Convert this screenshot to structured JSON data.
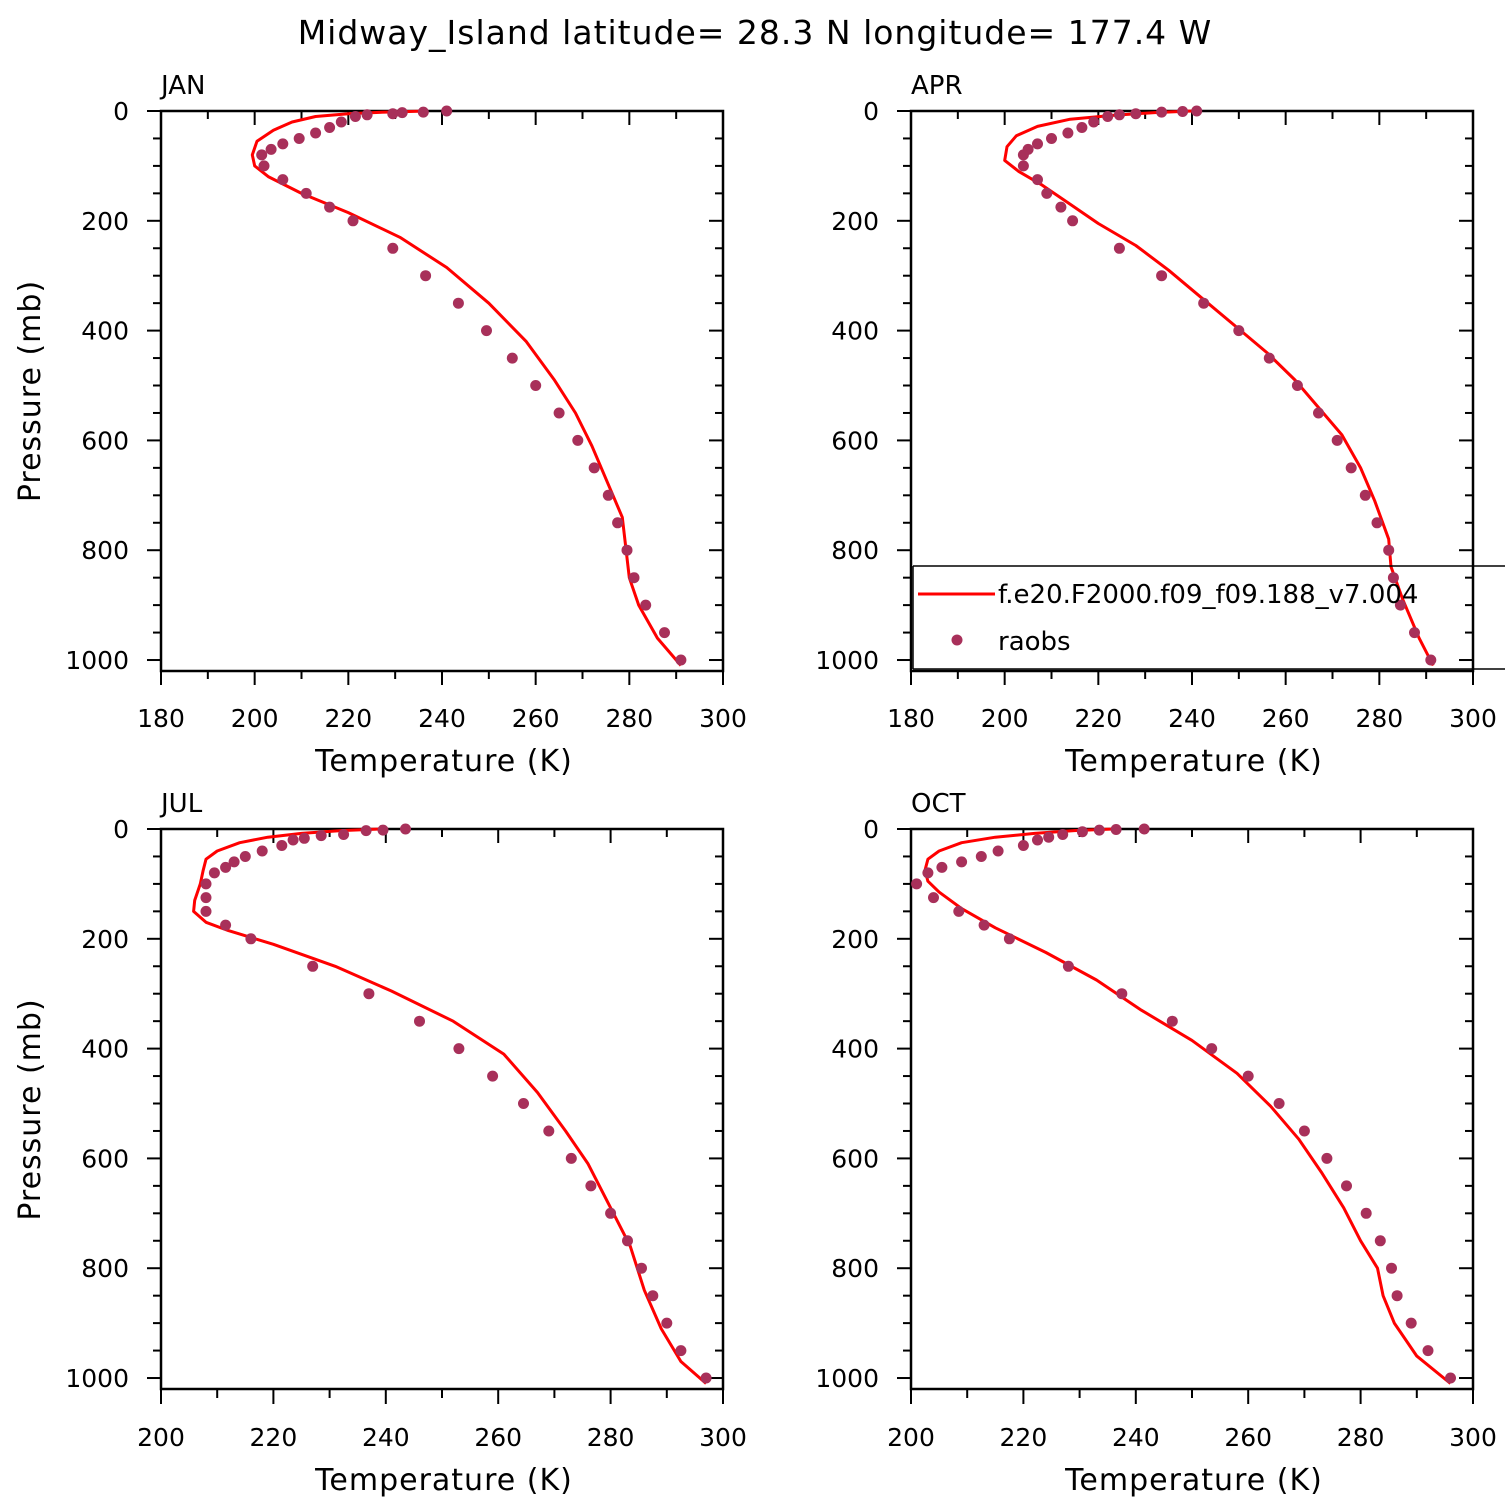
{
  "title": "Midway_Island  latitude= 28.3 N longitude= 177.4 W",
  "colors": {
    "model": "#ff0000",
    "obs": "#a8305a",
    "axes": "#000000"
  },
  "legend": {
    "placement": "inside lower-right of APR panel",
    "model_label": "f.e20.F2000.f09_f09.188_v7.004",
    "obs_label": "raobs"
  },
  "chart_data": [
    {
      "type": "line",
      "panel_label": "JAN",
      "xlabel": "Temperature (K)",
      "ylabel": "Pressure (mb)",
      "xlim": [
        180,
        300
      ],
      "ylim": [
        1020,
        0
      ],
      "xticks": [
        180,
        200,
        220,
        240,
        260,
        280,
        300
      ],
      "yticks": [
        0,
        200,
        400,
        600,
        800,
        1000
      ],
      "series": [
        {
          "name": "f.e20.F2000.f09_f09.188_v7.004",
          "kind": "line",
          "x": [
            237,
            228,
            220,
            213,
            208,
            204,
            200.5,
            199.5,
            200,
            203,
            210,
            220,
            231,
            241,
            250,
            258,
            264,
            268.5,
            272,
            275,
            278.5,
            280,
            282,
            286,
            291
          ],
          "y": [
            0,
            2,
            5,
            10,
            20,
            35,
            55,
            80,
            100,
            120,
            150,
            185,
            230,
            285,
            350,
            420,
            490,
            550,
            610,
            670,
            740,
            850,
            900,
            960,
            1010
          ]
        },
        {
          "name": "raobs",
          "kind": "scatter",
          "x": [
            241,
            236,
            231.5,
            229.5,
            224,
            221.5,
            218.5,
            216,
            213,
            209.5,
            206,
            203.5,
            201.5,
            202,
            206,
            211,
            216,
            221,
            229.5,
            236.5,
            243.5,
            249.5,
            255,
            260,
            265,
            269,
            272.5,
            275.5,
            277.5,
            279.5,
            281,
            283.5,
            287.5,
            291
          ],
          "y": [
            0,
            2,
            3,
            5,
            7,
            10,
            20,
            30,
            40,
            50,
            60,
            70,
            80,
            100,
            125,
            150,
            175,
            200,
            250,
            300,
            350,
            400,
            450,
            500,
            550,
            600,
            650,
            700,
            750,
            800,
            850,
            900,
            950,
            1000
          ]
        }
      ]
    },
    {
      "type": "line",
      "panel_label": "APR",
      "xlabel": "Temperature (K)",
      "ylabel": "",
      "xlim": [
        180,
        300
      ],
      "ylim": [
        1020,
        0
      ],
      "xticks": [
        180,
        200,
        220,
        240,
        260,
        280,
        300
      ],
      "yticks": [
        0,
        200,
        400,
        600,
        800,
        1000
      ],
      "series": [
        {
          "name": "f.e20.F2000.f09_f09.188_v7.004",
          "kind": "line",
          "x": [
            240,
            232,
            223,
            214,
            207,
            202.5,
            200.5,
            200,
            203,
            208,
            214,
            220,
            228,
            235,
            242,
            249,
            256,
            262,
            267,
            272,
            276,
            279,
            282,
            282.5,
            285,
            288.5,
            291.5
          ],
          "y": [
            0,
            3,
            8,
            15,
            28,
            45,
            65,
            90,
            110,
            135,
            170,
            205,
            245,
            290,
            340,
            390,
            440,
            490,
            540,
            590,
            650,
            710,
            780,
            830,
            890,
            960,
            1010
          ]
        },
        {
          "name": "raobs",
          "kind": "scatter",
          "x": [
            241,
            238,
            233.5,
            228,
            224.5,
            222,
            219,
            216.5,
            213.5,
            210,
            207,
            205,
            204,
            204,
            207,
            209,
            212,
            214.5,
            224.5,
            233.5,
            242.5,
            250,
            256.5,
            262.5,
            267,
            271,
            274,
            277,
            279.5,
            282,
            283,
            284.5,
            287.5,
            291
          ],
          "y": [
            0,
            1,
            2,
            5,
            7,
            10,
            20,
            30,
            40,
            50,
            60,
            70,
            80,
            100,
            125,
            150,
            175,
            200,
            250,
            300,
            350,
            400,
            450,
            500,
            550,
            600,
            650,
            700,
            750,
            800,
            850,
            900,
            950,
            1000
          ]
        }
      ]
    },
    {
      "type": "line",
      "panel_label": "JUL",
      "xlabel": "Temperature (K)",
      "ylabel": "Pressure (mb)",
      "xlim": [
        200,
        300
      ],
      "ylim": [
        1020,
        0
      ],
      "xticks": [
        200,
        220,
        240,
        260,
        280,
        300
      ],
      "yticks": [
        0,
        200,
        400,
        600,
        800,
        1000
      ],
      "series": [
        {
          "name": "f.e20.F2000.f09_f09.188_v7.004",
          "kind": "line",
          "x": [
            239,
            232,
            225,
            219,
            214,
            210,
            208,
            207.5,
            207,
            206,
            205.8,
            208,
            212,
            220,
            231,
            241,
            252,
            261,
            267,
            272,
            276,
            280,
            283.5,
            286,
            289,
            292.5,
            297
          ],
          "y": [
            0,
            3,
            8,
            15,
            25,
            40,
            55,
            75,
            100,
            130,
            150,
            170,
            185,
            210,
            250,
            295,
            350,
            410,
            480,
            550,
            610,
            690,
            760,
            840,
            910,
            970,
            1010
          ]
        },
        {
          "name": "raobs",
          "kind": "scatter",
          "x": [
            243.5,
            239.5,
            236.5,
            232.5,
            228.5,
            225.5,
            223.5,
            221.5,
            218,
            215,
            213,
            211.5,
            209.5,
            208,
            208,
            208,
            211.5,
            216,
            227,
            237,
            246,
            253,
            259,
            264.5,
            269,
            273,
            276.5,
            280,
            283,
            285.5,
            287.5,
            290,
            292.5,
            297
          ],
          "y": [
            0,
            2,
            3,
            10,
            12,
            17,
            20,
            30,
            40,
            50,
            60,
            70,
            80,
            100,
            125,
            150,
            175,
            200,
            250,
            300,
            350,
            400,
            450,
            500,
            550,
            600,
            650,
            700,
            750,
            800,
            850,
            900,
            950,
            1000
          ]
        }
      ]
    },
    {
      "type": "line",
      "panel_label": "OCT",
      "xlabel": "Temperature (K)",
      "ylabel": "",
      "xlim": [
        200,
        300
      ],
      "ylim": [
        1020,
        0
      ],
      "xticks": [
        200,
        220,
        240,
        260,
        280,
        300
      ],
      "yticks": [
        0,
        200,
        400,
        600,
        800,
        1000
      ],
      "series": [
        {
          "name": "f.e20.F2000.f09_f09.188_v7.004",
          "kind": "line",
          "x": [
            236,
            229,
            222,
            215,
            209,
            205,
            203,
            202.5,
            203,
            205,
            209,
            215,
            224,
            233,
            241,
            250,
            258,
            264,
            269,
            273,
            277,
            280,
            283,
            284,
            286,
            290,
            296
          ],
          "y": [
            0,
            3,
            8,
            15,
            25,
            40,
            55,
            75,
            95,
            115,
            145,
            180,
            225,
            275,
            330,
            385,
            445,
            505,
            565,
            625,
            690,
            750,
            800,
            850,
            900,
            960,
            1010
          ]
        },
        {
          "name": "raobs",
          "kind": "scatter",
          "x": [
            241.5,
            236.5,
            233.5,
            230.5,
            227,
            224.5,
            222.5,
            220,
            215.5,
            212.5,
            209,
            205.5,
            203,
            201,
            204,
            208.5,
            213,
            217.5,
            228,
            237.5,
            246.5,
            253.5,
            260,
            265.5,
            270,
            274,
            277.5,
            281,
            283.5,
            285.5,
            286.5,
            289,
            292,
            296
          ],
          "y": [
            0,
            1,
            2,
            5,
            10,
            15,
            20,
            30,
            40,
            50,
            60,
            70,
            80,
            100,
            125,
            150,
            175,
            200,
            250,
            300,
            350,
            400,
            450,
            500,
            550,
            600,
            650,
            700,
            750,
            800,
            850,
            900,
            950,
            1000
          ]
        }
      ]
    }
  ]
}
